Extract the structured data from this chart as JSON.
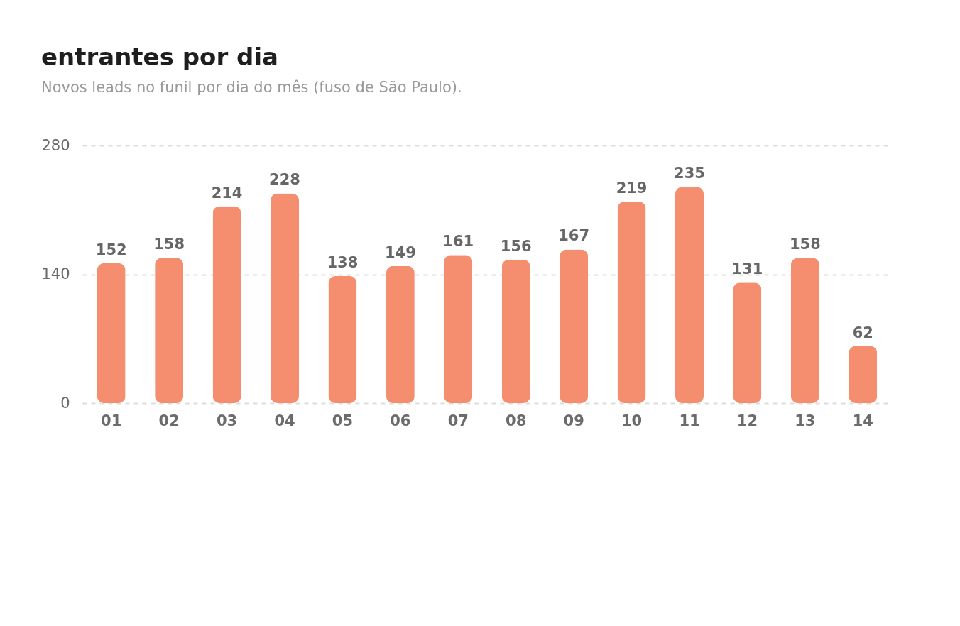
{
  "chart_data": {
    "type": "bar",
    "title": "entrantes por dia",
    "subtitle": "Novos leads no funil por dia do mês (fuso de São Paulo).",
    "categories": [
      "01",
      "02",
      "03",
      "04",
      "05",
      "06",
      "07",
      "08",
      "09",
      "10",
      "11",
      "12",
      "13",
      "14"
    ],
    "values": [
      152,
      158,
      214,
      228,
      138,
      149,
      161,
      156,
      167,
      219,
      235,
      131,
      158,
      62
    ],
    "color": "#f58e6f",
    "ylim": [
      0,
      280
    ],
    "yticks": [
      0,
      140,
      280
    ],
    "grid": "y",
    "data_labels": true
  }
}
